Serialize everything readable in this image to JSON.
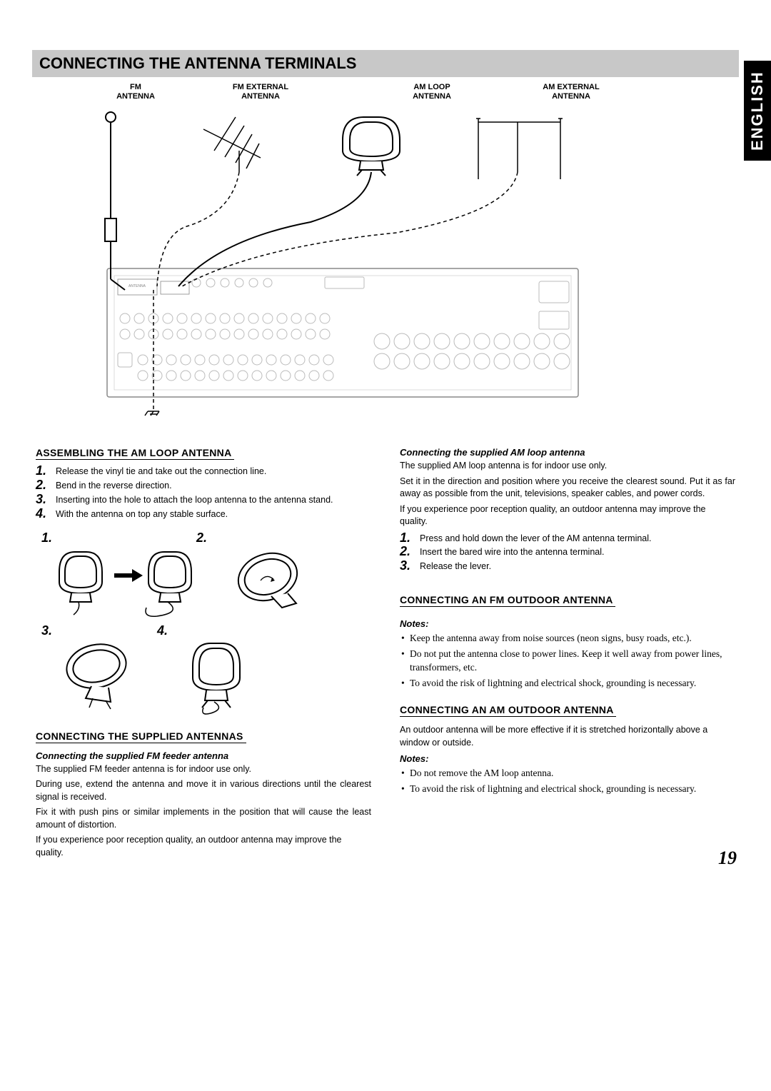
{
  "language_tab": "ENGLISH",
  "page_number": "19",
  "title": "CONNECTING THE ANTENNA TERMINALS",
  "antenna_labels": {
    "fm": "FM\nANTENNA",
    "fm_ext": "FM EXTERNAL\nANTENNA",
    "am_loop": "AM LOOP\nANTENNA",
    "am_ext": "AM EXTERNAL\nANTENNA"
  },
  "left": {
    "assembling": {
      "heading": "ASSEMBLING THE AM LOOP ANTENNA",
      "steps": [
        "Release the vinyl tie and take out the connection line.",
        "Bend in the reverse direction.",
        "Inserting into the hole to attach the loop antenna to the antenna stand.",
        "With the antenna on top any stable surface."
      ]
    },
    "diagram_nums": [
      "1.",
      "2.",
      "3.",
      "4."
    ],
    "supplied": {
      "heading": "CONNECTING THE SUPPLIED ANTENNAS",
      "sub": "Connecting the supplied FM feeder antenna",
      "p1": "The supplied FM feeder antenna is for indoor use only.",
      "p2": "During use, extend the antenna and move it in various directions until the clearest signal is received.",
      "p3": "Fix it with push pins or similar implements in the position that will cause the least amount of distortion.",
      "p4": "If you experience poor reception quality, an outdoor antenna may improve the quality."
    }
  },
  "right": {
    "am_supplied": {
      "sub": "Connecting the supplied AM loop antenna",
      "p1": "The supplied AM loop antenna is for indoor use only.",
      "p2": "Set it in the direction and position where you receive the clearest sound.  Put it as far away as possible from the unit, televisions, speaker cables, and power cords.",
      "p3": "If you experience poor reception quality, an outdoor antenna may improve the quality.",
      "steps": [
        "Press and hold down the lever of the AM antenna terminal.",
        "Insert the bared wire into the antenna terminal.",
        "Release the lever."
      ]
    },
    "fm_outdoor": {
      "heading": "CONNECTING AN FM OUTDOOR ANTENNA",
      "notes_label": "Notes:",
      "notes": [
        "Keep the antenna away from noise sources (neon signs, busy roads, etc.).",
        "Do not put the antenna close to power lines.  Keep it well away from power lines, transformers, etc.",
        "To avoid the risk of lightning and electrical shock, grounding is necessary."
      ]
    },
    "am_outdoor": {
      "heading": "CONNECTING AN AM OUTDOOR ANTENNA",
      "p1": "An outdoor antenna will be more effective if it is stretched horizontally above a window or outside.",
      "notes_label": "Notes:",
      "notes": [
        "Do not remove the AM loop antenna.",
        "To avoid the risk of lightning and electrical shock, grounding is necessary."
      ]
    }
  }
}
